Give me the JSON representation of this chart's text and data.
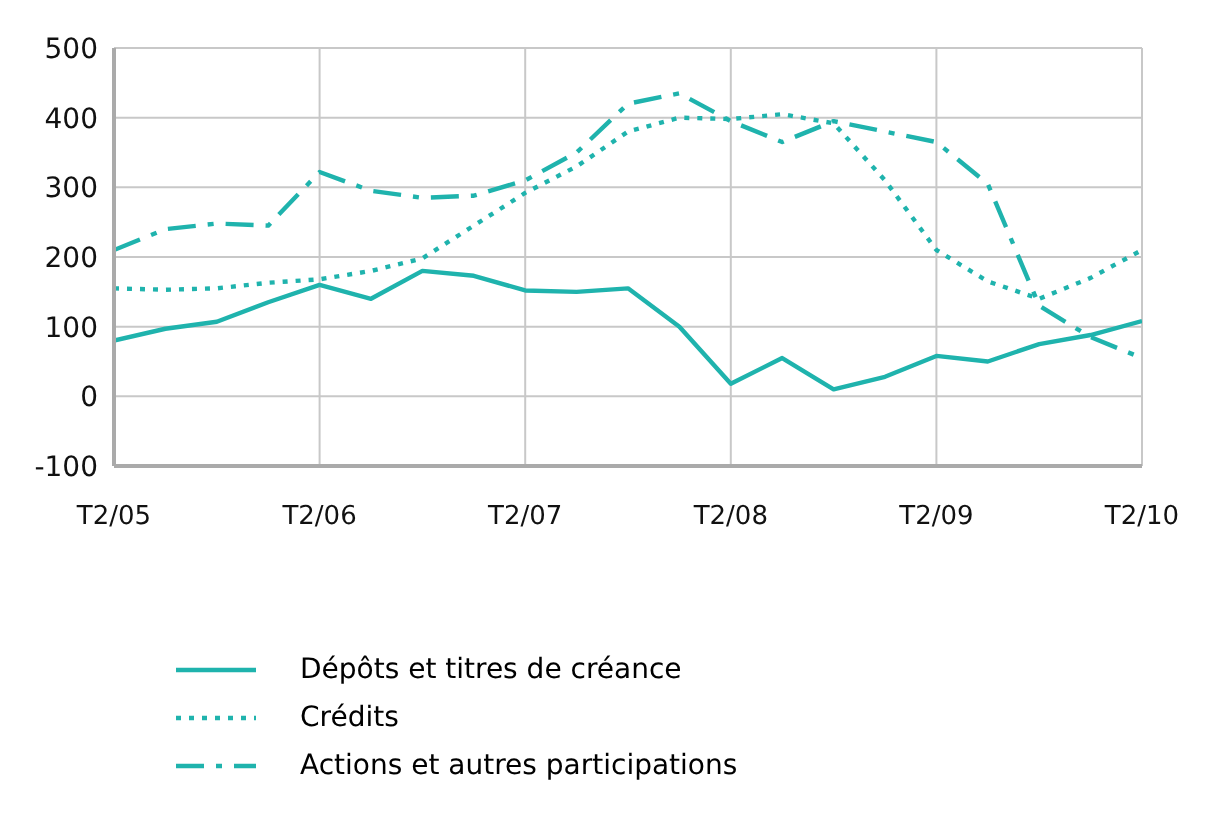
{
  "chart_data": {
    "type": "line",
    "categories": [
      "T2/05",
      null,
      null,
      null,
      "T2/06",
      null,
      null,
      null,
      "T2/07",
      null,
      null,
      null,
      "T2/08",
      null,
      null,
      null,
      "T2/09",
      null,
      null,
      null,
      "T2/10"
    ],
    "series": [
      {
        "name": "Dépôts et titres de créance",
        "color": "#1fb3ad",
        "line_style": "solid",
        "values": [
          80,
          97,
          107,
          135,
          160,
          140,
          180,
          173,
          152,
          150,
          155,
          100,
          18,
          55,
          10,
          28,
          58,
          50,
          75,
          88,
          108
        ]
      },
      {
        "name": "Crédits",
        "color": "#1fb3ad",
        "line_style": "dotted",
        "values": [
          155,
          153,
          155,
          163,
          168,
          180,
          198,
          245,
          292,
          330,
          380,
          400,
          398,
          405,
          392,
          310,
          210,
          165,
          140,
          170,
          210
        ]
      },
      {
        "name": "Actions et autres participations",
        "color": "#1fb3ad",
        "line_style": "dashed",
        "values": [
          210,
          240,
          248,
          245,
          322,
          295,
          285,
          288,
          310,
          350,
          420,
          435,
          395,
          365,
          395,
          380,
          365,
          305,
          130,
          85,
          55
        ]
      }
    ],
    "ylim": [
      -100,
      500
    ],
    "yticks": [
      -100,
      0,
      100,
      200,
      300,
      400,
      500
    ],
    "grid": true,
    "legend": "bottom",
    "marker": "none"
  }
}
